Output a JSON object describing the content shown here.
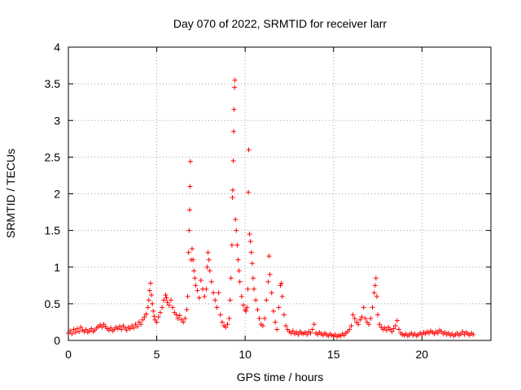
{
  "chart_data": {
    "type": "scatter",
    "title": "Day 070 of 2022, SRMTID for receiver larr",
    "xlabel": "GPS time / hours",
    "ylabel": "SRMTID / TECUs",
    "xlim": [
      0,
      23.9
    ],
    "ylim": [
      0,
      4
    ],
    "xticks": [
      0,
      5,
      10,
      15,
      20
    ],
    "xtick_labels": [
      "0",
      "5",
      "10",
      "15",
      "20"
    ],
    "yticks": [
      0,
      0.5,
      1,
      1.5,
      2,
      2.5,
      3,
      3.5,
      4
    ],
    "ytick_labels": [
      "0",
      "0.5",
      "1",
      "1.5",
      "2",
      "2.5",
      "3",
      "3.5",
      "4"
    ],
    "grid": true,
    "marker": "plus",
    "color": "#ff0000",
    "series": [
      {
        "name": "SRMTID",
        "points": [
          [
            0.0,
            0.1
          ],
          [
            0.1,
            0.13
          ],
          [
            0.2,
            0.09
          ],
          [
            0.3,
            0.15
          ],
          [
            0.4,
            0.11
          ],
          [
            0.5,
            0.16
          ],
          [
            0.6,
            0.12
          ],
          [
            0.7,
            0.18
          ],
          [
            0.8,
            0.14
          ],
          [
            0.9,
            0.12
          ],
          [
            1.0,
            0.15
          ],
          [
            1.1,
            0.11
          ],
          [
            1.2,
            0.13
          ],
          [
            1.3,
            0.16
          ],
          [
            1.4,
            0.12
          ],
          [
            1.5,
            0.14
          ],
          [
            1.6,
            0.17
          ],
          [
            1.7,
            0.19
          ],
          [
            1.8,
            0.21
          ],
          [
            1.9,
            0.18
          ],
          [
            2.0,
            0.22
          ],
          [
            2.1,
            0.19
          ],
          [
            2.2,
            0.16
          ],
          [
            2.3,
            0.14
          ],
          [
            2.4,
            0.17
          ],
          [
            2.5,
            0.13
          ],
          [
            2.6,
            0.15
          ],
          [
            2.7,
            0.18
          ],
          [
            2.8,
            0.16
          ],
          [
            2.9,
            0.19
          ],
          [
            3.0,
            0.15
          ],
          [
            3.1,
            0.2
          ],
          [
            3.2,
            0.17
          ],
          [
            3.3,
            0.14
          ],
          [
            3.4,
            0.18
          ],
          [
            3.5,
            0.16
          ],
          [
            3.6,
            0.2
          ],
          [
            3.7,
            0.17
          ],
          [
            3.8,
            0.22
          ],
          [
            3.9,
            0.19
          ],
          [
            4.0,
            0.25
          ],
          [
            4.1,
            0.22
          ],
          [
            4.2,
            0.28
          ],
          [
            4.3,
            0.32
          ],
          [
            4.4,
            0.36
          ],
          [
            4.5,
            0.45
          ],
          [
            4.55,
            0.55
          ],
          [
            4.6,
            0.68
          ],
          [
            4.65,
            0.78
          ],
          [
            4.7,
            0.62
          ],
          [
            4.75,
            0.5
          ],
          [
            4.8,
            0.4
          ],
          [
            4.85,
            0.33
          ],
          [
            4.9,
            0.28
          ],
          [
            5.0,
            0.25
          ],
          [
            5.1,
            0.32
          ],
          [
            5.2,
            0.38
          ],
          [
            5.3,
            0.45
          ],
          [
            5.4,
            0.55
          ],
          [
            5.5,
            0.62
          ],
          [
            5.55,
            0.58
          ],
          [
            5.6,
            0.52
          ],
          [
            5.7,
            0.48
          ],
          [
            5.8,
            0.55
          ],
          [
            5.9,
            0.45
          ],
          [
            6.0,
            0.38
          ],
          [
            6.1,
            0.35
          ],
          [
            6.2,
            0.3
          ],
          [
            6.3,
            0.34
          ],
          [
            6.4,
            0.28
          ],
          [
            6.5,
            0.25
          ],
          [
            6.6,
            0.3
          ],
          [
            6.7,
            0.42
          ],
          [
            6.75,
            0.6
          ],
          [
            6.8,
            1.2
          ],
          [
            6.83,
            1.5
          ],
          [
            6.86,
            1.78
          ],
          [
            6.88,
            2.1
          ],
          [
            6.9,
            2.44
          ],
          [
            6.95,
            1.1
          ],
          [
            7.0,
            1.25
          ],
          [
            7.05,
            1.1
          ],
          [
            7.1,
            0.95
          ],
          [
            7.15,
            0.85
          ],
          [
            7.2,
            0.75
          ],
          [
            7.3,
            0.68
          ],
          [
            7.4,
            0.58
          ],
          [
            7.5,
            0.82
          ],
          [
            7.6,
            0.7
          ],
          [
            7.7,
            0.6
          ],
          [
            7.8,
            0.7
          ],
          [
            7.85,
            1.0
          ],
          [
            7.9,
            1.2
          ],
          [
            7.95,
            1.1
          ],
          [
            8.0,
            0.95
          ],
          [
            8.1,
            0.8
          ],
          [
            8.2,
            0.65
          ],
          [
            8.3,
            0.55
          ],
          [
            8.4,
            0.45
          ],
          [
            8.5,
            0.65
          ],
          [
            8.6,
            0.35
          ],
          [
            8.7,
            0.25
          ],
          [
            8.8,
            0.2
          ],
          [
            8.9,
            0.18
          ],
          [
            9.0,
            0.22
          ],
          [
            9.1,
            0.3
          ],
          [
            9.15,
            0.55
          ],
          [
            9.2,
            0.85
          ],
          [
            9.25,
            1.3
          ],
          [
            9.28,
            1.95
          ],
          [
            9.3,
            2.05
          ],
          [
            9.33,
            2.45
          ],
          [
            9.35,
            2.85
          ],
          [
            9.37,
            3.15
          ],
          [
            9.4,
            3.45
          ],
          [
            9.42,
            3.55
          ],
          [
            9.45,
            1.65
          ],
          [
            9.5,
            1.5
          ],
          [
            9.55,
            1.3
          ],
          [
            9.6,
            1.1
          ],
          [
            9.65,
            0.95
          ],
          [
            9.7,
            0.8
          ],
          [
            9.8,
            0.6
          ],
          [
            9.9,
            0.48
          ],
          [
            10.0,
            0.42
          ],
          [
            10.05,
            0.4
          ],
          [
            10.1,
            0.45
          ],
          [
            10.15,
            0.7
          ],
          [
            10.18,
            2.02
          ],
          [
            10.2,
            2.6
          ],
          [
            10.25,
            1.45
          ],
          [
            10.3,
            1.35
          ],
          [
            10.35,
            1.2
          ],
          [
            10.4,
            1.05
          ],
          [
            10.45,
            0.85
          ],
          [
            10.5,
            0.7
          ],
          [
            10.6,
            0.55
          ],
          [
            10.7,
            0.42
          ],
          [
            10.8,
            0.3
          ],
          [
            10.9,
            0.22
          ],
          [
            11.0,
            0.2
          ],
          [
            11.1,
            0.3
          ],
          [
            11.2,
            0.55
          ],
          [
            11.3,
            0.8
          ],
          [
            11.35,
            1.15
          ],
          [
            11.4,
            0.9
          ],
          [
            11.5,
            0.65
          ],
          [
            11.6,
            0.4
          ],
          [
            11.7,
            0.25
          ],
          [
            11.8,
            0.15
          ],
          [
            11.9,
            0.45
          ],
          [
            12.0,
            0.75
          ],
          [
            12.05,
            0.78
          ],
          [
            12.1,
            0.6
          ],
          [
            12.2,
            0.35
          ],
          [
            12.3,
            0.2
          ],
          [
            12.4,
            0.15
          ],
          [
            12.5,
            0.12
          ],
          [
            12.6,
            0.1
          ],
          [
            12.7,
            0.13
          ],
          [
            12.8,
            0.09
          ],
          [
            12.9,
            0.11
          ],
          [
            13.0,
            0.08
          ],
          [
            13.1,
            0.12
          ],
          [
            13.2,
            0.1
          ],
          [
            13.3,
            0.09
          ],
          [
            13.4,
            0.11
          ],
          [
            13.5,
            0.08
          ],
          [
            13.6,
            0.12
          ],
          [
            13.7,
            0.1
          ],
          [
            13.8,
            0.15
          ],
          [
            13.9,
            0.22
          ],
          [
            14.0,
            0.1
          ],
          [
            14.1,
            0.08
          ],
          [
            14.2,
            0.11
          ],
          [
            14.3,
            0.09
          ],
          [
            14.4,
            0.07
          ],
          [
            14.5,
            0.1
          ],
          [
            14.6,
            0.08
          ],
          [
            14.7,
            0.06
          ],
          [
            14.8,
            0.09
          ],
          [
            14.9,
            0.07
          ],
          [
            15.0,
            0.06
          ],
          [
            15.1,
            0.08
          ],
          [
            15.2,
            0.05
          ],
          [
            15.3,
            0.07
          ],
          [
            15.4,
            0.06
          ],
          [
            15.5,
            0.09
          ],
          [
            15.6,
            0.07
          ],
          [
            15.7,
            0.1
          ],
          [
            15.8,
            0.12
          ],
          [
            15.9,
            0.15
          ],
          [
            16.0,
            0.2
          ],
          [
            16.1,
            0.35
          ],
          [
            16.2,
            0.3
          ],
          [
            16.3,
            0.25
          ],
          [
            16.4,
            0.22
          ],
          [
            16.5,
            0.28
          ],
          [
            16.6,
            0.32
          ],
          [
            16.7,
            0.45
          ],
          [
            16.8,
            0.3
          ],
          [
            16.9,
            0.25
          ],
          [
            17.0,
            0.22
          ],
          [
            17.1,
            0.3
          ],
          [
            17.2,
            0.45
          ],
          [
            17.3,
            0.65
          ],
          [
            17.35,
            0.75
          ],
          [
            17.4,
            0.85
          ],
          [
            17.45,
            0.6
          ],
          [
            17.5,
            0.35
          ],
          [
            17.6,
            0.22
          ],
          [
            17.7,
            0.18
          ],
          [
            17.8,
            0.15
          ],
          [
            17.9,
            0.17
          ],
          [
            18.0,
            0.14
          ],
          [
            18.1,
            0.18
          ],
          [
            18.2,
            0.15
          ],
          [
            18.3,
            0.12
          ],
          [
            18.4,
            0.16
          ],
          [
            18.5,
            0.2
          ],
          [
            18.6,
            0.27
          ],
          [
            18.7,
            0.15
          ],
          [
            18.8,
            0.1
          ],
          [
            18.9,
            0.08
          ],
          [
            19.0,
            0.07
          ],
          [
            19.1,
            0.09
          ],
          [
            19.2,
            0.06
          ],
          [
            19.3,
            0.08
          ],
          [
            19.4,
            0.1
          ],
          [
            19.5,
            0.07
          ],
          [
            19.6,
            0.09
          ],
          [
            19.7,
            0.06
          ],
          [
            19.8,
            0.08
          ],
          [
            19.9,
            0.1
          ],
          [
            20.0,
            0.08
          ],
          [
            20.1,
            0.11
          ],
          [
            20.2,
            0.09
          ],
          [
            20.3,
            0.12
          ],
          [
            20.4,
            0.1
          ],
          [
            20.5,
            0.13
          ],
          [
            20.6,
            0.11
          ],
          [
            20.7,
            0.09
          ],
          [
            20.8,
            0.12
          ],
          [
            20.9,
            0.1
          ],
          [
            21.0,
            0.14
          ],
          [
            21.1,
            0.12
          ],
          [
            21.2,
            0.09
          ],
          [
            21.3,
            0.11
          ],
          [
            21.4,
            0.08
          ],
          [
            21.5,
            0.1
          ],
          [
            21.6,
            0.07
          ],
          [
            21.7,
            0.09
          ],
          [
            21.8,
            0.06
          ],
          [
            21.9,
            0.08
          ],
          [
            22.0,
            0.1
          ],
          [
            22.1,
            0.07
          ],
          [
            22.2,
            0.09
          ],
          [
            22.3,
            0.12
          ],
          [
            22.4,
            0.08
          ],
          [
            22.5,
            0.11
          ],
          [
            22.6,
            0.09
          ],
          [
            22.7,
            0.07
          ],
          [
            22.8,
            0.1
          ],
          [
            22.9,
            0.08
          ]
        ]
      }
    ]
  }
}
